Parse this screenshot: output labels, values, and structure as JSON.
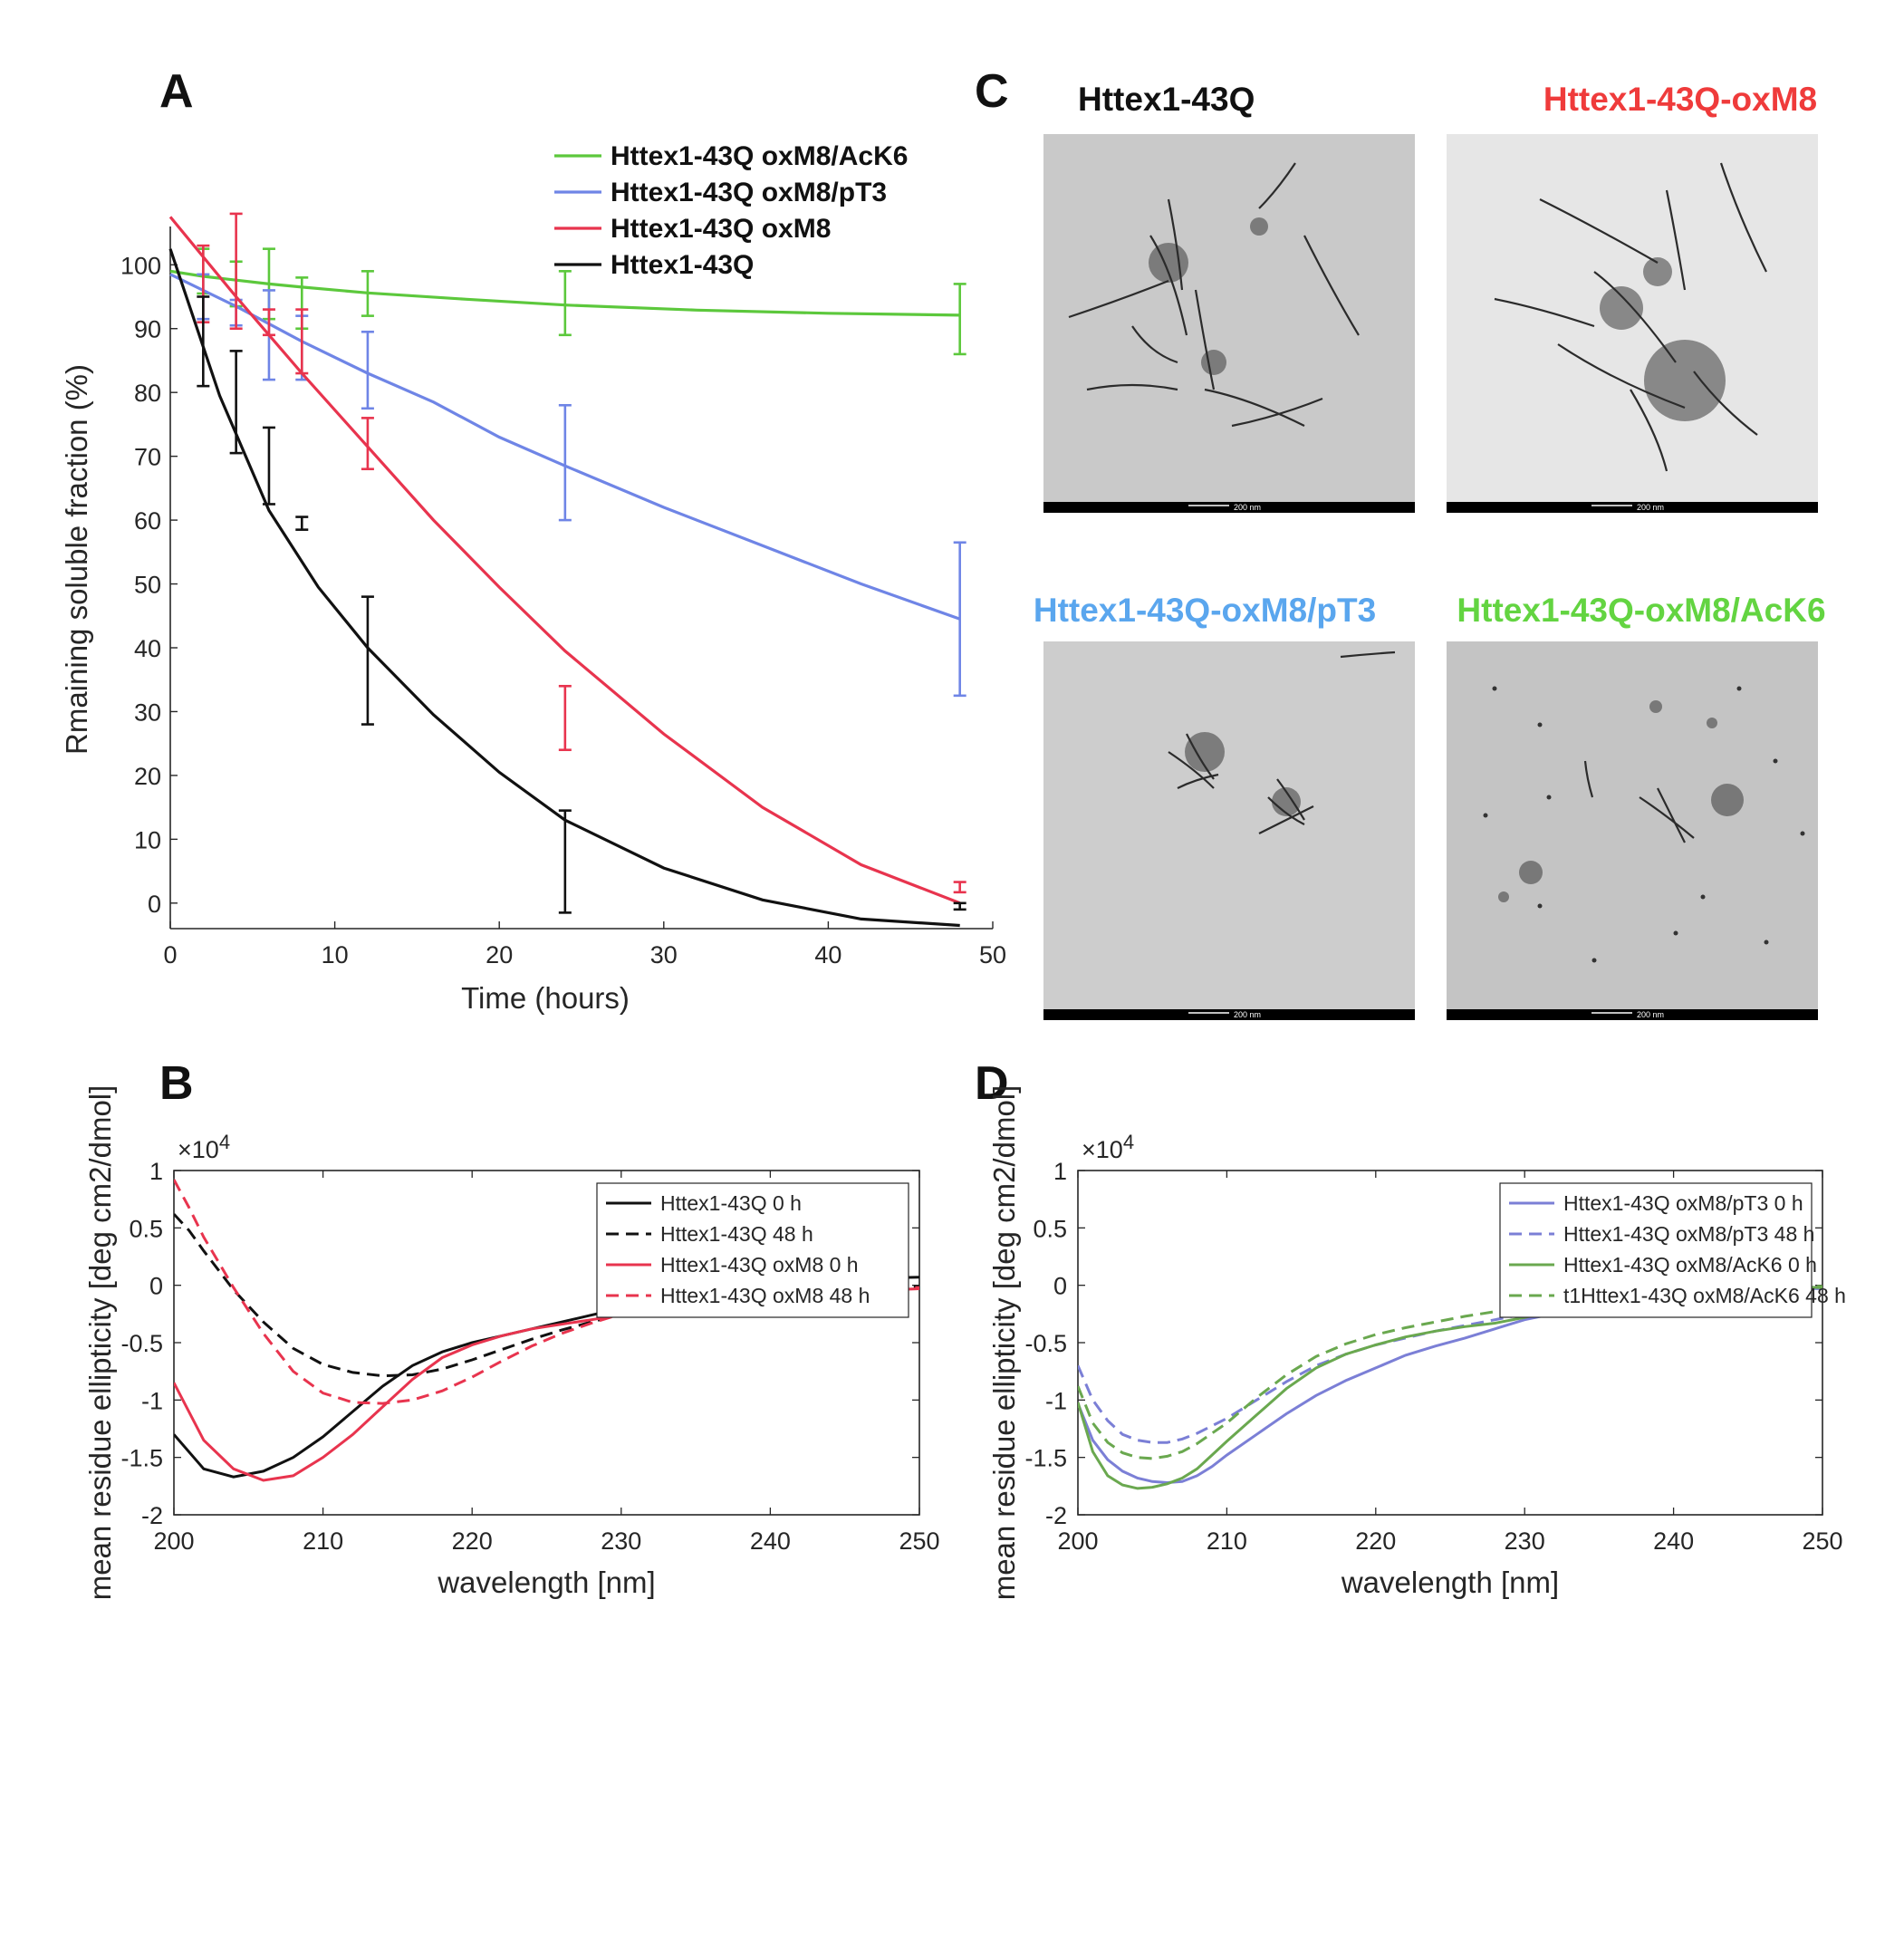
{
  "panels": {
    "a": {
      "letter": "A"
    },
    "b": {
      "letter": "B"
    },
    "c": {
      "letter": "C"
    },
    "d": {
      "letter": "D"
    }
  },
  "colors": {
    "black": "#111111",
    "red": "#e8344e",
    "blue": "#6f85e6",
    "green": "#5cc83c",
    "cd_blue": "#7b7fd6",
    "cd_green": "#6aa84f",
    "em_red": "#ef3b3b",
    "em_blue": "#5aa6ee",
    "em_green": "#63d441"
  },
  "chart_data": [
    {
      "id": "A",
      "type": "line",
      "xlabel": "Time (hours)",
      "ylabel": "Rmaining soluble fraction (%)",
      "xlim": [
        0,
        50
      ],
      "ylim": [
        -4,
        106
      ],
      "xticks": [
        0,
        10,
        20,
        30,
        40,
        50
      ],
      "yticks": [
        0,
        10,
        20,
        30,
        40,
        50,
        60,
        70,
        80,
        90,
        100
      ],
      "grid": false,
      "legend_position": "top-right",
      "series": [
        {
          "name": "Httex1-43Q oxM8/AcK6",
          "color": "green",
          "fit": {
            "t": [
              0,
              2,
              4,
              6,
              8,
              12,
              18,
              24,
              32,
              40,
              48
            ],
            "y": [
              99,
              98.2,
              97.6,
              97,
              96.5,
              95.6,
              94.6,
              93.7,
              92.9,
              92.4,
              92.1
            ]
          },
          "points": [
            {
              "x": 2,
              "y": 99,
              "err": 3.5
            },
            {
              "x": 4,
              "y": 97,
              "err": 3.5
            },
            {
              "x": 6,
              "y": 97,
              "err": 5.5
            },
            {
              "x": 8,
              "y": 94,
              "err": 4
            },
            {
              "x": 12,
              "y": 95.5,
              "err": 3.5
            },
            {
              "x": 24,
              "y": 94,
              "err": 5
            },
            {
              "x": 48,
              "y": 91.5,
              "err": 5.5
            }
          ]
        },
        {
          "name": "Httex1-43Q oxM8/pT3",
          "color": "blue",
          "fit": {
            "t": [
              0,
              4,
              8,
              12,
              16,
              20,
              24,
              30,
              36,
              42,
              48
            ],
            "y": [
              98.5,
              93.5,
              88,
              83,
              78.5,
              73,
              68.5,
              62,
              56,
              50,
              44.5
            ]
          },
          "points": [
            {
              "x": 2,
              "y": 95,
              "err": 3.5
            },
            {
              "x": 4,
              "y": 92.5,
              "err": 2
            },
            {
              "x": 6,
              "y": 89,
              "err": 7
            },
            {
              "x": 8,
              "y": 87,
              "err": 5
            },
            {
              "x": 12,
              "y": 83.5,
              "err": 6
            },
            {
              "x": 24,
              "y": 69,
              "err": 9
            },
            {
              "x": 48,
              "y": 44.5,
              "err": 12
            }
          ]
        },
        {
          "name": "Httex1-43Q oxM8",
          "color": "red",
          "fit": {
            "t": [
              0,
              4,
              8,
              12,
              16,
              20,
              24,
              30,
              36,
              42,
              48
            ],
            "y": [
              107.5,
              95,
              83,
              71.5,
              60,
              49.5,
              39.5,
              26.5,
              15,
              6,
              0
            ]
          },
          "points": [
            {
              "x": 2,
              "y": 97,
              "err": 6
            },
            {
              "x": 4,
              "y": 99,
              "err": 9
            },
            {
              "x": 6,
              "y": 91,
              "err": 2
            },
            {
              "x": 8,
              "y": 88,
              "err": 5
            },
            {
              "x": 12,
              "y": 72,
              "err": 4
            },
            {
              "x": 24,
              "y": 29,
              "err": 5
            },
            {
              "x": 48,
              "y": 2.5,
              "err": 0.8
            }
          ]
        },
        {
          "name": "Httex1-43Q",
          "color": "black",
          "fit": {
            "t": [
              0,
              3,
              6,
              9,
              12,
              16,
              20,
              24,
              30,
              36,
              42,
              48
            ],
            "y": [
              102.5,
              79.5,
              61.5,
              49.5,
              40,
              29.5,
              20.5,
              13,
              5.5,
              0.5,
              -2.5,
              -3.5
            ]
          },
          "points": [
            {
              "x": 2,
              "y": 88,
              "err": 7
            },
            {
              "x": 4,
              "y": 78.5,
              "err": 8
            },
            {
              "x": 6,
              "y": 68.5,
              "err": 6
            },
            {
              "x": 8,
              "y": 59.5,
              "err": 1
            },
            {
              "x": 12,
              "y": 38,
              "err": 10
            },
            {
              "x": 24,
              "y": 6.5,
              "err": 8
            },
            {
              "x": 48,
              "y": -0.5,
              "err": 0.5
            }
          ]
        }
      ]
    },
    {
      "id": "B",
      "type": "line",
      "xlabel": "wavelength [nm]",
      "ylabel": "mean residue ellipticity [deg cm2/dmol]",
      "exponent": "×10",
      "exponent_power": "4",
      "xlim": [
        200,
        250
      ],
      "ylim": [
        -2,
        1
      ],
      "xticks": [
        200,
        210,
        220,
        230,
        240,
        250
      ],
      "yticks": [
        -2,
        -1.5,
        -1,
        -0.5,
        0,
        0.5,
        1
      ],
      "ytick_labels": [
        "-2",
        "-1.5",
        "-1",
        "-0.5",
        "0",
        "0.5",
        "1"
      ],
      "grid": false,
      "legend_position": "top-right",
      "series": [
        {
          "name": "Httex1-43Q 0 h",
          "color": "black",
          "dash": false,
          "x": [
            200,
            202,
            204,
            206,
            208,
            210,
            212,
            214,
            216,
            218,
            220,
            222,
            224,
            226,
            228,
            230,
            232,
            234,
            236,
            238,
            240,
            243,
            246,
            250
          ],
          "y": [
            -1.3,
            -1.6,
            -1.67,
            -1.62,
            -1.5,
            -1.32,
            -1.1,
            -0.88,
            -0.7,
            -0.58,
            -0.5,
            -0.44,
            -0.38,
            -0.32,
            -0.26,
            -0.2,
            -0.13,
            -0.05,
            0.01,
            0.03,
            0.04,
            0.05,
            0.06,
            0.07
          ]
        },
        {
          "name": "Httex1-43Q 48 h",
          "color": "black",
          "dash": true,
          "x": [
            200,
            201,
            202,
            203,
            204,
            205,
            206,
            208,
            210,
            212,
            214,
            216,
            218,
            220,
            222,
            224,
            226,
            228,
            230,
            232,
            234,
            236,
            238,
            240,
            243,
            246,
            250
          ],
          "y": [
            0.62,
            0.48,
            0.3,
            0.13,
            -0.04,
            -0.18,
            -0.32,
            -0.55,
            -0.69,
            -0.76,
            -0.79,
            -0.78,
            -0.73,
            -0.65,
            -0.56,
            -0.47,
            -0.39,
            -0.32,
            -0.25,
            -0.19,
            -0.14,
            -0.1,
            -0.07,
            -0.05,
            -0.03,
            -0.02,
            -0.01
          ]
        },
        {
          "name": "Httex1-43Q oxM8 0 h",
          "color": "red",
          "dash": false,
          "x": [
            200,
            202,
            204,
            206,
            208,
            210,
            212,
            214,
            216,
            218,
            220,
            222,
            224,
            226,
            228,
            230,
            232,
            234,
            236,
            238,
            240,
            243,
            246,
            250
          ],
          "y": [
            -0.85,
            -1.35,
            -1.6,
            -1.7,
            -1.66,
            -1.5,
            -1.3,
            -1.06,
            -0.82,
            -0.63,
            -0.52,
            -0.44,
            -0.38,
            -0.34,
            -0.3,
            -0.26,
            -0.21,
            -0.17,
            -0.15,
            -0.14,
            -0.12,
            -0.08,
            -0.05,
            -0.03
          ]
        },
        {
          "name": "Httex1-43Q oxM8 48 h",
          "color": "red",
          "dash": true,
          "x": [
            200,
            201,
            202,
            203,
            204,
            205,
            206,
            208,
            210,
            212,
            214,
            216,
            218,
            220,
            222,
            224,
            226,
            228,
            230,
            232,
            234,
            236,
            238,
            240,
            243,
            246,
            250
          ],
          "y": [
            0.92,
            0.68,
            0.42,
            0.2,
            -0.02,
            -0.22,
            -0.42,
            -0.75,
            -0.94,
            -1.02,
            -1.03,
            -1.0,
            -0.92,
            -0.8,
            -0.66,
            -0.53,
            -0.42,
            -0.33,
            -0.25,
            -0.18,
            -0.13,
            -0.09,
            -0.07,
            -0.05,
            -0.04,
            -0.03,
            -0.02
          ]
        }
      ]
    },
    {
      "id": "D",
      "type": "line",
      "xlabel": "wavelength [nm]",
      "ylabel": "mean residue ellipticity [deg cm2/dmol]",
      "exponent": "×10",
      "exponent_power": "4",
      "xlim": [
        200,
        250
      ],
      "ylim": [
        -2,
        1
      ],
      "xticks": [
        200,
        210,
        220,
        230,
        240,
        250
      ],
      "yticks": [
        -2,
        -1.5,
        -1,
        -0.5,
        0,
        0.5,
        1
      ],
      "ytick_labels": [
        "-2",
        "-1.5",
        "-1",
        "-0.5",
        "0",
        "0.5",
        "1"
      ],
      "grid": false,
      "legend_position": "top-right",
      "series": [
        {
          "name": "Httex1-43Q oxM8/pT3 0 h",
          "color": "cd_blue",
          "dash": false,
          "x": [
            200,
            201,
            202,
            203,
            204,
            205,
            206,
            207,
            208,
            209,
            210,
            212,
            214,
            216,
            218,
            220,
            222,
            224,
            226,
            228,
            230,
            233,
            236,
            240,
            244,
            247,
            250
          ],
          "y": [
            -1.03,
            -1.35,
            -1.52,
            -1.62,
            -1.68,
            -1.71,
            -1.72,
            -1.71,
            -1.66,
            -1.58,
            -1.48,
            -1.3,
            -1.12,
            -0.96,
            -0.83,
            -0.72,
            -0.61,
            -0.53,
            -0.46,
            -0.38,
            -0.3,
            -0.22,
            -0.15,
            -0.08,
            -0.03,
            -0.02,
            -0.03
          ]
        },
        {
          "name": "Httex1-43Q oxM8/pT3 48 h",
          "color": "cd_blue",
          "dash": true,
          "x": [
            200,
            201,
            202,
            203,
            204,
            205,
            206,
            207,
            208,
            210,
            212,
            214,
            216,
            218,
            220,
            222,
            224,
            226,
            228,
            230,
            233,
            236,
            240,
            244,
            247,
            250
          ],
          "y": [
            -0.7,
            -1.0,
            -1.18,
            -1.3,
            -1.35,
            -1.37,
            -1.37,
            -1.34,
            -1.29,
            -1.16,
            -1.0,
            -0.84,
            -0.7,
            -0.6,
            -0.52,
            -0.46,
            -0.4,
            -0.35,
            -0.3,
            -0.25,
            -0.18,
            -0.12,
            -0.06,
            -0.02,
            -0.01,
            -0.02
          ]
        },
        {
          "name": "Httex1-43Q oxM8/AcK6 0 h",
          "color": "cd_green",
          "dash": false,
          "x": [
            200,
            201,
            202,
            203,
            204,
            205,
            206,
            207,
            208,
            209,
            210,
            212,
            214,
            216,
            218,
            220,
            222,
            224,
            226,
            228,
            230,
            233,
            236,
            240,
            244,
            247,
            250
          ],
          "y": [
            -1.02,
            -1.45,
            -1.66,
            -1.74,
            -1.77,
            -1.76,
            -1.73,
            -1.68,
            -1.6,
            -1.48,
            -1.36,
            -1.13,
            -0.9,
            -0.72,
            -0.6,
            -0.52,
            -0.45,
            -0.4,
            -0.36,
            -0.33,
            -0.28,
            -0.2,
            -0.13,
            -0.06,
            -0.02,
            -0.01,
            -0.02
          ]
        },
        {
          "name": "t1Httex1-43Q oxM8/AcK6 48 h",
          "color": "cd_green",
          "dash": true,
          "x": [
            200,
            201,
            202,
            203,
            204,
            205,
            206,
            207,
            208,
            210,
            212,
            214,
            216,
            218,
            220,
            222,
            224,
            226,
            228,
            230,
            233,
            236,
            240,
            244,
            247,
            250
          ],
          "y": [
            -0.88,
            -1.2,
            -1.37,
            -1.46,
            -1.5,
            -1.51,
            -1.49,
            -1.45,
            -1.38,
            -1.2,
            -0.98,
            -0.78,
            -0.62,
            -0.51,
            -0.43,
            -0.37,
            -0.32,
            -0.27,
            -0.23,
            -0.19,
            -0.13,
            -0.08,
            -0.03,
            0.0,
            0.0,
            -0.01
          ]
        }
      ]
    }
  ],
  "micrographs": [
    {
      "title": "Httex1-43Q",
      "title_color": "black",
      "scale_label": "200 nm",
      "background": "#c9c9c9"
    },
    {
      "title": "Httex1-43Q-oxM8",
      "title_color": "em_red",
      "scale_label": "200 nm",
      "background": "#e6e6e6"
    },
    {
      "title": "Httex1-43Q-oxM8/pT3",
      "title_color": "em_blue",
      "scale_label": "200 nm",
      "background": "#cdcdcd"
    },
    {
      "title": "Httex1-43Q-oxM8/AcK6",
      "title_color": "em_green",
      "scale_label": "200 nm",
      "background": "#c4c4c4"
    }
  ]
}
